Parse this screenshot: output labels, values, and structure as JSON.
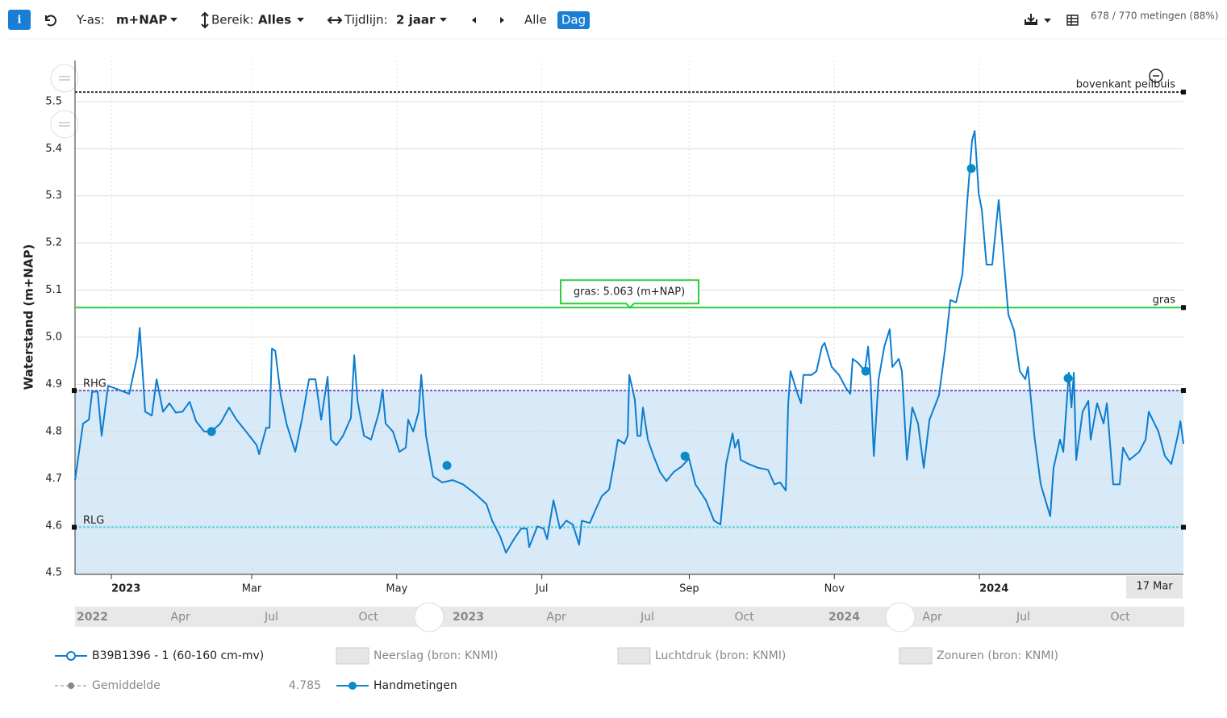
{
  "toolbar": {
    "y_axis_label": "Y-as:",
    "y_axis_value": "m+NAP",
    "range_label": "Bereik:",
    "range_value": "Alles",
    "timeline_label": "Tijdlijn:",
    "timeline_value": "2 jaar",
    "all": "Alle",
    "day": "Dag",
    "count": "678 / 770 metingen (88%)"
  },
  "chart_data": {
    "type": "line",
    "y_label": "Waterstand (m+NAP)",
    "xlim": [
      -15.3,
      450.8
    ],
    "ylim": [
      4.497,
      5.587
    ],
    "xticks": [
      {
        "value": 0,
        "label": "2023"
      },
      {
        "value": 59,
        "label": "Mar"
      },
      {
        "value": 120,
        "label": "May"
      },
      {
        "value": 181,
        "label": "Jul"
      },
      {
        "value": 243,
        "label": "Sep"
      },
      {
        "value": 304,
        "label": "Nov"
      },
      {
        "value": 365,
        "label": "2024"
      }
    ],
    "crosshair_x": {
      "value": 441,
      "label": "17 Mar"
    },
    "yticks": [
      4.5,
      4.6,
      4.7,
      4.8,
      4.9,
      {
        "value": 5,
        "label": "5.0"
      },
      5.1,
      5.2,
      5.3,
      5.4,
      5.5
    ],
    "grid": true,
    "reference_lines": [
      {
        "name": "bovenkant peilbuis",
        "value": 5.52,
        "color": "#333333"
      },
      {
        "name": "gras",
        "value": 5.063,
        "color": "#2ecc40"
      },
      {
        "name": "RHG",
        "value": 4.887,
        "color": "#6a5acd"
      },
      {
        "name": "RLG",
        "value": 4.597,
        "color": "#40d8e8"
      }
    ],
    "band_color": "#d8eaf7",
    "tooltip": "gras: 5.063 (m+NAP)",
    "series": [
      {
        "name": "B39B1396 - 1 (60-160 cm-mv)",
        "color": "#0b7dd0",
        "type": "line",
        "x": [
          -15.3,
          -11.9,
          -9.5,
          -8.1,
          -5.8,
          -4.1,
          -1.4,
          2.4,
          7.5,
          10.9,
          11.9,
          14.2,
          17.0,
          19.0,
          21.7,
          24.4,
          27.1,
          29.9,
          32.9,
          35.6,
          39.0,
          42.1,
          45.8,
          49.5,
          52.6,
          56.6,
          61.1,
          62.1,
          65.1,
          66.5,
          67.5,
          68.9,
          71.2,
          73.6,
          77.3,
          80.1,
          83.1,
          85.8,
          88.2,
          90.9,
          92.3,
          94.6,
          97.4,
          100.7,
          102.1,
          103.5,
          106.2,
          109.2,
          112.6,
          114.0,
          115.3,
          118.4,
          121.1,
          123.8,
          124.8,
          126.9,
          129.2,
          130.3,
          132.3,
          135.3,
          139.1,
          143.5,
          147.9,
          153.0,
          157.7,
          160.1,
          163.5,
          165.9,
          169.3,
          172.3,
          174.7,
          175.7,
          179.1,
          181.8,
          183.2,
          185.9,
          188.6,
          191.3,
          194.0,
          196.7,
          197.8,
          201.2,
          203.5,
          206.2,
          209.3,
          211.0,
          213.0,
          215.7,
          217.1,
          217.8,
          220.1,
          221.2,
          222.5,
          223.5,
          225.6,
          228.0,
          230.7,
          233.4,
          236.4,
          239.8,
          242.9,
          245.6,
          250.0,
          253.4,
          256.1,
          258.5,
          261.2,
          262.2,
          263.6,
          264.6,
          268.0,
          272.0,
          276.1,
          278.8,
          281.2,
          283.6,
          284.6,
          285.6,
          288.7,
          290.0,
          291.0,
          294.4,
          296.5,
          298.8,
          299.9,
          302.9,
          306.0,
          308.7,
          310.7,
          311.7,
          314.1,
          316.8,
          318.2,
          319.2,
          320.6,
          322.6,
          325.0,
          327.3,
          328.4,
          331.1,
          332.4,
          334.5,
          336.8,
          339.2,
          341.6,
          344.0,
          348.0,
          350.7,
          352.8,
          355.2,
          357.9,
          359.9,
          361.9,
          363.0,
          364.7,
          366.0,
          368.0,
          370.4,
          373.1,
          375.2,
          377.2,
          379.6,
          382.0,
          384.3,
          385.4,
          388.1,
          390.8,
          394.8,
          396.2,
          398.9,
          400.3,
          402.6,
          403.7,
          404.7,
          405.7,
          408.4,
          410.8,
          411.8,
          414.5,
          417.2,
          418.6,
          421.3,
          424.0,
          425.4,
          428.1,
          432.2,
          434.9,
          436.2,
          440.3,
          443.0,
          445.7,
          448.4,
          449.5,
          450.8
        ],
        "values": [
          4.697,
          4.817,
          4.825,
          4.884,
          4.885,
          4.791,
          4.897,
          4.89,
          4.88,
          4.96,
          5.02,
          4.842,
          4.834,
          4.911,
          4.842,
          4.86,
          4.84,
          4.842,
          4.863,
          4.822,
          4.8,
          4.8,
          4.817,
          4.851,
          4.825,
          4.8,
          4.771,
          4.752,
          4.808,
          4.808,
          4.976,
          4.971,
          4.877,
          4.817,
          4.757,
          4.825,
          4.911,
          4.911,
          4.825,
          4.916,
          4.783,
          4.771,
          4.791,
          4.829,
          4.962,
          4.865,
          4.791,
          4.783,
          4.842,
          4.889,
          4.817,
          4.8,
          4.757,
          4.766,
          4.825,
          4.8,
          4.842,
          4.92,
          4.791,
          4.705,
          4.692,
          4.697,
          4.688,
          4.668,
          4.646,
          4.611,
          4.577,
          4.543,
          4.572,
          4.594,
          4.594,
          4.555,
          4.599,
          4.594,
          4.572,
          4.654,
          4.594,
          4.611,
          4.603,
          4.56,
          4.611,
          4.606,
          4.633,
          4.663,
          4.677,
          4.723,
          4.783,
          4.774,
          4.791,
          4.92,
          4.868,
          4.791,
          4.791,
          4.851,
          4.783,
          4.748,
          4.714,
          4.695,
          4.714,
          4.726,
          4.743,
          4.688,
          4.654,
          4.611,
          4.603,
          4.731,
          4.796,
          4.766,
          4.783,
          4.74,
          4.731,
          4.723,
          4.719,
          4.688,
          4.692,
          4.675,
          4.86,
          4.928,
          4.877,
          4.86,
          4.92,
          4.92,
          4.928,
          4.98,
          4.988,
          4.937,
          4.92,
          4.894,
          4.88,
          4.954,
          4.945,
          4.928,
          4.98,
          4.911,
          4.748,
          4.911,
          4.98,
          5.017,
          4.937,
          4.954,
          4.928,
          4.74,
          4.851,
          4.817,
          4.723,
          4.825,
          4.877,
          4.98,
          5.079,
          5.074,
          5.134,
          5.288,
          5.416,
          5.438,
          5.305,
          5.271,
          5.154,
          5.154,
          5.291,
          5.168,
          5.048,
          5.014,
          4.928,
          4.911,
          4.937,
          4.791,
          4.688,
          4.62,
          4.723,
          4.783,
          4.757,
          4.925,
          4.851,
          4.925,
          4.74,
          4.842,
          4.865,
          4.783,
          4.86,
          4.817,
          4.86,
          4.688,
          4.688,
          4.766,
          4.74,
          4.757,
          4.783,
          4.842,
          4.8,
          4.748,
          4.731,
          4.791,
          4.822,
          4.774
        ]
      },
      {
        "name": "Handmetingen",
        "color": "#0b8ac8",
        "type": "scatter",
        "x": [
          42.1,
          141.1,
          241.2,
          317.2,
          361.6,
          402.3
        ],
        "values": [
          4.8,
          4.728,
          4.748,
          4.928,
          5.358,
          4.913
        ]
      }
    ]
  },
  "navigator": [
    "2022",
    "Apr",
    "Jul",
    "Oct",
    "2023",
    "Apr",
    "Jul",
    "Oct",
    "2024",
    "Apr",
    "Jul",
    "Oct"
  ],
  "legend": {
    "extra": [
      "Neerslag (bron: KNMI)",
      "Luchtdruk (bron: KNMI)",
      "Zonuren (bron: KNMI)"
    ],
    "mean_name": "Gemiddelde",
    "mean_value": 4.785
  }
}
